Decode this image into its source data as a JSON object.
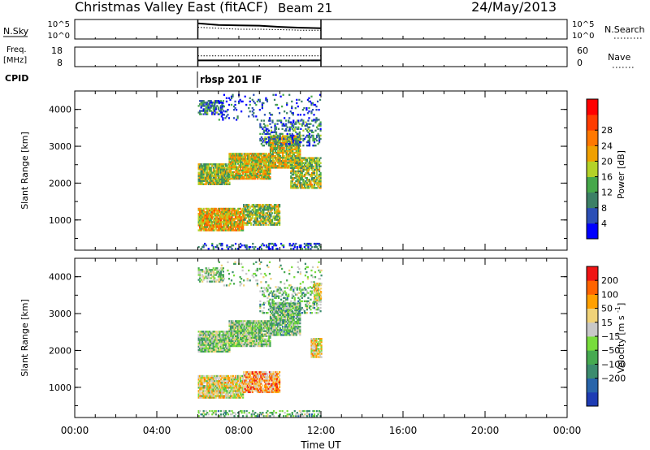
{
  "header": {
    "station": "Christmas Valley East (fitACF)",
    "beam": "Beam 21",
    "date": "24/May/2013"
  },
  "chart_data": [
    {
      "panel": "nsky-nsearch",
      "type": "line",
      "left_label": "N.Sky",
      "right_label": "N.Search",
      "left_ticks": [
        "10^5",
        "10^0"
      ],
      "right_ticks": [
        "10^5",
        "10^0"
      ],
      "x_range_ut": [
        6.0,
        12.0
      ],
      "series": [
        {
          "name": "N.Sky",
          "style": "solid",
          "x": [
            6.0,
            6.5,
            7.0,
            8.0,
            9.0,
            10.0,
            11.0,
            12.0
          ],
          "y_frac": [
            0.8,
            0.76,
            0.72,
            0.7,
            0.68,
            0.62,
            0.58,
            0.55
          ]
        },
        {
          "name": "N.Search",
          "style": "dotted",
          "x": [
            6.0,
            7.0,
            8.0,
            9.0,
            10.0,
            11.0,
            12.0
          ],
          "y_frac": [
            0.6,
            0.55,
            0.5,
            0.5,
            0.48,
            0.45,
            0.45
          ]
        }
      ]
    },
    {
      "panel": "freq-nave",
      "type": "line",
      "left_label_1": "Freq.",
      "left_label_2": "[MHz]",
      "right_label": "Nave",
      "left_ticks": [
        "18",
        "8"
      ],
      "right_ticks": [
        "60",
        "0"
      ],
      "x_range_ut": [
        6.0,
        12.0
      ],
      "series": [
        {
          "name": "Freq.",
          "style": "solid",
          "x": [
            6.0,
            12.0
          ],
          "y_frac": [
            0.32,
            0.32
          ]
        },
        {
          "name": "Nave",
          "style": "dotted",
          "x": [
            6.0,
            12.0
          ],
          "y_frac": [
            0.55,
            0.55
          ]
        }
      ]
    },
    {
      "panel": "cpid",
      "type": "table",
      "label": "CPID",
      "program": "rbsp 201 IF",
      "start_ut": 6.0
    },
    {
      "panel": "power",
      "type": "heatmap",
      "ylabel": "Slant Range [km]",
      "yticks": [
        "1000",
        "2000",
        "3000",
        "4000"
      ],
      "ylim_km": [
        180,
        4500
      ],
      "colorbar": {
        "label": "Power [dB]",
        "ticks": [
          "4",
          "8",
          "12",
          "16",
          "20",
          "24",
          "28"
        ],
        "colors": [
          "#0000ff",
          "#2c4fb6",
          "#3c8066",
          "#46a84a",
          "#b4d228",
          "#f0a000",
          "#ff7800",
          "#ff3c00",
          "#ff0000"
        ]
      },
      "bands": [
        {
          "t0": 6.0,
          "t1": 7.2,
          "r0": 3850,
          "r1": 4250,
          "level": 0.25,
          "density": 0.65
        },
        {
          "t0": 6.0,
          "t1": 7.5,
          "r0": 1950,
          "r1": 2500,
          "level": 0.45,
          "density": 0.9
        },
        {
          "t0": 7.5,
          "t1": 9.5,
          "r0": 2100,
          "r1": 2800,
          "level": 0.55,
          "density": 0.9
        },
        {
          "t0": 9.5,
          "t1": 11.0,
          "r0": 2400,
          "r1": 3300,
          "level": 0.5,
          "density": 0.85
        },
        {
          "t0": 10.5,
          "t1": 12.0,
          "r0": 1850,
          "r1": 2700,
          "level": 0.45,
          "density": 0.75
        },
        {
          "t0": 6.0,
          "t1": 8.2,
          "r0": 700,
          "r1": 1300,
          "level": 0.6,
          "density": 0.9
        },
        {
          "t0": 8.2,
          "t1": 10.0,
          "r0": 850,
          "r1": 1400,
          "level": 0.45,
          "density": 0.75
        },
        {
          "t0": 9.0,
          "t1": 12.0,
          "r0": 3000,
          "r1": 3700,
          "level": 0.25,
          "density": 0.35
        },
        {
          "t0": 7.0,
          "t1": 12.0,
          "r0": 3700,
          "r1": 4400,
          "level": 0.15,
          "density": 0.12
        },
        {
          "t0": 6.0,
          "t1": 12.0,
          "r0": 200,
          "r1": 350,
          "level": 0.15,
          "density": 0.3
        }
      ]
    },
    {
      "panel": "velocity",
      "type": "heatmap",
      "ylabel": "Slant Range [km]",
      "yticks": [
        "1000",
        "2000",
        "3000",
        "4000"
      ],
      "ylim_km": [
        180,
        4500
      ],
      "colorbar": {
        "label": "Velocity [m s^-1]",
        "ticks": [
          "200",
          "100",
          "50",
          "15",
          "-15",
          "-50",
          "-100",
          "-200"
        ],
        "colors": [
          "#1e3cb4",
          "#2864aa",
          "#3c8c6e",
          "#46aa50",
          "#78dc3c",
          "#c8c8c8",
          "#f0d278",
          "#ffa000",
          "#ff6400",
          "#f01414"
        ]
      },
      "bands": [
        {
          "t0": 6.0,
          "t1": 7.2,
          "r0": 3850,
          "r1": 4250,
          "level": 0.55,
          "density": 0.55
        },
        {
          "t0": 6.0,
          "t1": 7.5,
          "r0": 1950,
          "r1": 2500,
          "level": 0.55,
          "density": 0.9
        },
        {
          "t0": 7.5,
          "t1": 9.5,
          "r0": 2100,
          "r1": 2800,
          "level": 0.55,
          "density": 0.9
        },
        {
          "t0": 9.5,
          "t1": 11.0,
          "r0": 2400,
          "r1": 3300,
          "level": 0.6,
          "density": 0.85
        },
        {
          "t0": 11.5,
          "t1": 12.0,
          "r0": 1800,
          "r1": 2300,
          "level": 0.4,
          "density": 0.85
        },
        {
          "t0": 6.0,
          "t1": 8.2,
          "r0": 700,
          "r1": 1300,
          "level": 0.4,
          "density": 0.9
        },
        {
          "t0": 8.2,
          "t1": 10.0,
          "r0": 850,
          "r1": 1400,
          "level": 0.25,
          "density": 0.8
        },
        {
          "t0": 9.0,
          "t1": 12.0,
          "r0": 3000,
          "r1": 3700,
          "level": 0.6,
          "density": 0.3
        },
        {
          "t0": 11.6,
          "t1": 12.0,
          "r0": 3300,
          "r1": 3800,
          "level": 0.4,
          "density": 0.8
        },
        {
          "t0": 7.0,
          "t1": 12.0,
          "r0": 3700,
          "r1": 4400,
          "level": 0.55,
          "density": 0.1
        },
        {
          "t0": 6.0,
          "t1": 12.0,
          "r0": 200,
          "r1": 350,
          "level": 0.6,
          "density": 0.3
        }
      ]
    }
  ],
  "xaxis": {
    "label": "Time UT",
    "ticks": [
      "00:00",
      "04:00",
      "08:00",
      "12:00",
      "16:00",
      "20:00",
      "00:00"
    ],
    "range_hours": [
      0,
      24
    ]
  }
}
